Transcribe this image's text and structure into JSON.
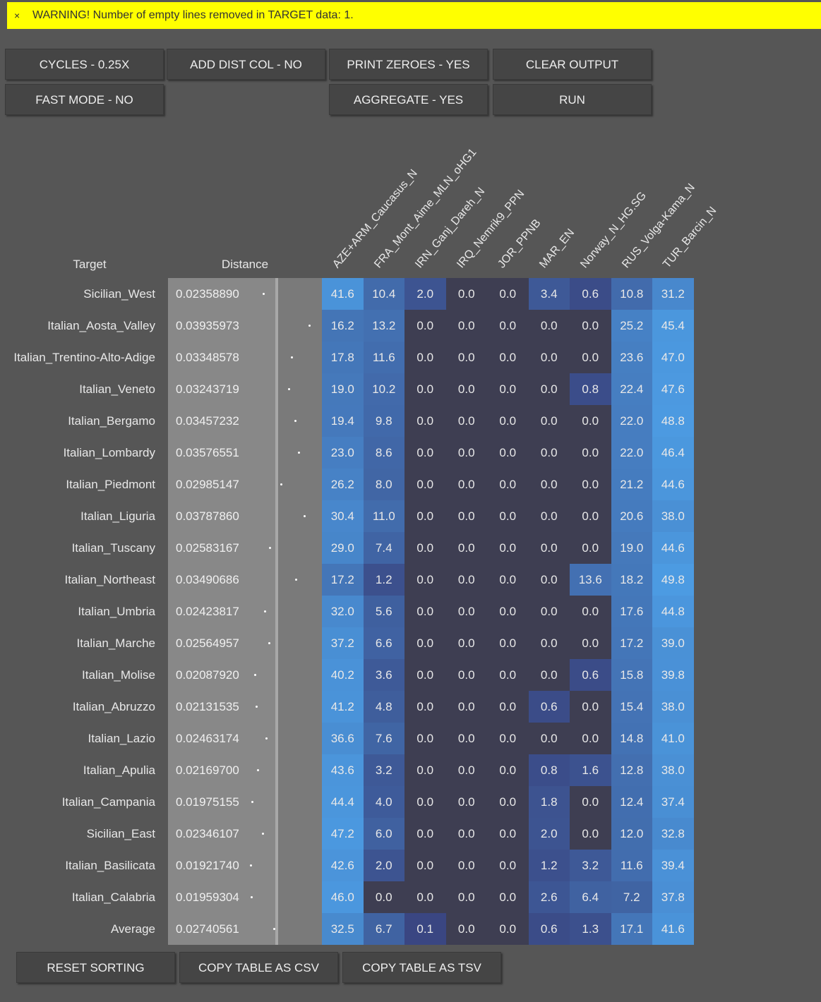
{
  "warning": {
    "close": "×",
    "text": "WARNING! Number of empty lines removed in TARGET data: 1."
  },
  "buttons": [
    "CYCLES - 0.25X",
    "ADD DIST COL - NO",
    "PRINT ZEROES - YES",
    "CLEAR OUTPUT",
    "FAST MODE - NO",
    "AGGREGATE - YES",
    "RUN"
  ],
  "table": {
    "target_header": "Target",
    "distance_header": "Distance",
    "columns": [
      "AZE+ARM_Caucasus_N",
      "FRA_Mont_Aime_MLN_oHG1",
      "IRN_Ganj_Dareh_N",
      "IRQ_Nemrik9_PPN",
      "JOR_PPNB",
      "MAR_EN",
      "Norway_N_HG.SG",
      "RUS_Volga-Kama_N",
      "TUR_Barcin_N"
    ],
    "rows": [
      {
        "name": "Sicilian_West",
        "distance": "0.02358890",
        "values": [
          "41.6",
          "10.4",
          "2.0",
          "0.0",
          "0.0",
          "3.4",
          "0.6",
          "10.8",
          "31.2"
        ]
      },
      {
        "name": "Italian_Aosta_Valley",
        "distance": "0.03935973",
        "values": [
          "16.2",
          "13.2",
          "0.0",
          "0.0",
          "0.0",
          "0.0",
          "0.0",
          "25.2",
          "45.4"
        ]
      },
      {
        "name": "Italian_Trentino-Alto-Adige",
        "distance": "0.03348578",
        "values": [
          "17.8",
          "11.6",
          "0.0",
          "0.0",
          "0.0",
          "0.0",
          "0.0",
          "23.6",
          "47.0"
        ]
      },
      {
        "name": "Italian_Veneto",
        "distance": "0.03243719",
        "values": [
          "19.0",
          "10.2",
          "0.0",
          "0.0",
          "0.0",
          "0.0",
          "0.8",
          "22.4",
          "47.6"
        ]
      },
      {
        "name": "Italian_Bergamo",
        "distance": "0.03457232",
        "values": [
          "19.4",
          "9.8",
          "0.0",
          "0.0",
          "0.0",
          "0.0",
          "0.0",
          "22.0",
          "48.8"
        ]
      },
      {
        "name": "Italian_Lombardy",
        "distance": "0.03576551",
        "values": [
          "23.0",
          "8.6",
          "0.0",
          "0.0",
          "0.0",
          "0.0",
          "0.0",
          "22.0",
          "46.4"
        ]
      },
      {
        "name": "Italian_Piedmont",
        "distance": "0.02985147",
        "values": [
          "26.2",
          "8.0",
          "0.0",
          "0.0",
          "0.0",
          "0.0",
          "0.0",
          "21.2",
          "44.6"
        ]
      },
      {
        "name": "Italian_Liguria",
        "distance": "0.03787860",
        "values": [
          "30.4",
          "11.0",
          "0.0",
          "0.0",
          "0.0",
          "0.0",
          "0.0",
          "20.6",
          "38.0"
        ]
      },
      {
        "name": "Italian_Tuscany",
        "distance": "0.02583167",
        "values": [
          "29.0",
          "7.4",
          "0.0",
          "0.0",
          "0.0",
          "0.0",
          "0.0",
          "19.0",
          "44.6"
        ]
      },
      {
        "name": "Italian_Northeast",
        "distance": "0.03490686",
        "values": [
          "17.2",
          "1.2",
          "0.0",
          "0.0",
          "0.0",
          "0.0",
          "13.6",
          "18.2",
          "49.8"
        ]
      },
      {
        "name": "Italian_Umbria",
        "distance": "0.02423817",
        "values": [
          "32.0",
          "5.6",
          "0.0",
          "0.0",
          "0.0",
          "0.0",
          "0.0",
          "17.6",
          "44.8"
        ]
      },
      {
        "name": "Italian_Marche",
        "distance": "0.02564957",
        "values": [
          "37.2",
          "6.6",
          "0.0",
          "0.0",
          "0.0",
          "0.0",
          "0.0",
          "17.2",
          "39.0"
        ]
      },
      {
        "name": "Italian_Molise",
        "distance": "0.02087920",
        "values": [
          "40.2",
          "3.6",
          "0.0",
          "0.0",
          "0.0",
          "0.0",
          "0.6",
          "15.8",
          "39.8"
        ]
      },
      {
        "name": "Italian_Abruzzo",
        "distance": "0.02131535",
        "values": [
          "41.2",
          "4.8",
          "0.0",
          "0.0",
          "0.0",
          "0.6",
          "0.0",
          "15.4",
          "38.0"
        ]
      },
      {
        "name": "Italian_Lazio",
        "distance": "0.02463174",
        "values": [
          "36.6",
          "7.6",
          "0.0",
          "0.0",
          "0.0",
          "0.0",
          "0.0",
          "14.8",
          "41.0"
        ]
      },
      {
        "name": "Italian_Apulia",
        "distance": "0.02169700",
        "values": [
          "43.6",
          "3.2",
          "0.0",
          "0.0",
          "0.0",
          "0.8",
          "1.6",
          "12.8",
          "38.0"
        ]
      },
      {
        "name": "Italian_Campania",
        "distance": "0.01975155",
        "values": [
          "44.4",
          "4.0",
          "0.0",
          "0.0",
          "0.0",
          "1.8",
          "0.0",
          "12.4",
          "37.4"
        ]
      },
      {
        "name": "Sicilian_East",
        "distance": "0.02346107",
        "values": [
          "47.2",
          "6.0",
          "0.0",
          "0.0",
          "0.0",
          "2.0",
          "0.0",
          "12.0",
          "32.8"
        ]
      },
      {
        "name": "Italian_Basilicata",
        "distance": "0.01921740",
        "values": [
          "42.6",
          "2.0",
          "0.0",
          "0.0",
          "0.0",
          "1.2",
          "3.2",
          "11.6",
          "39.4"
        ]
      },
      {
        "name": "Italian_Calabria",
        "distance": "0.01959304",
        "values": [
          "46.0",
          "0.0",
          "0.0",
          "0.0",
          "0.0",
          "2.6",
          "6.4",
          "7.2",
          "37.8"
        ]
      },
      {
        "name": "Average",
        "distance": "0.02740561",
        "values": [
          "32.5",
          "6.7",
          "0.1",
          "0.0",
          "0.0",
          "0.6",
          "1.3",
          "17.1",
          "41.6"
        ]
      }
    ]
  },
  "bottom_buttons": [
    "RESET SORTING",
    "COPY TABLE AS CSV",
    "COPY TABLE AS TSV"
  ]
}
